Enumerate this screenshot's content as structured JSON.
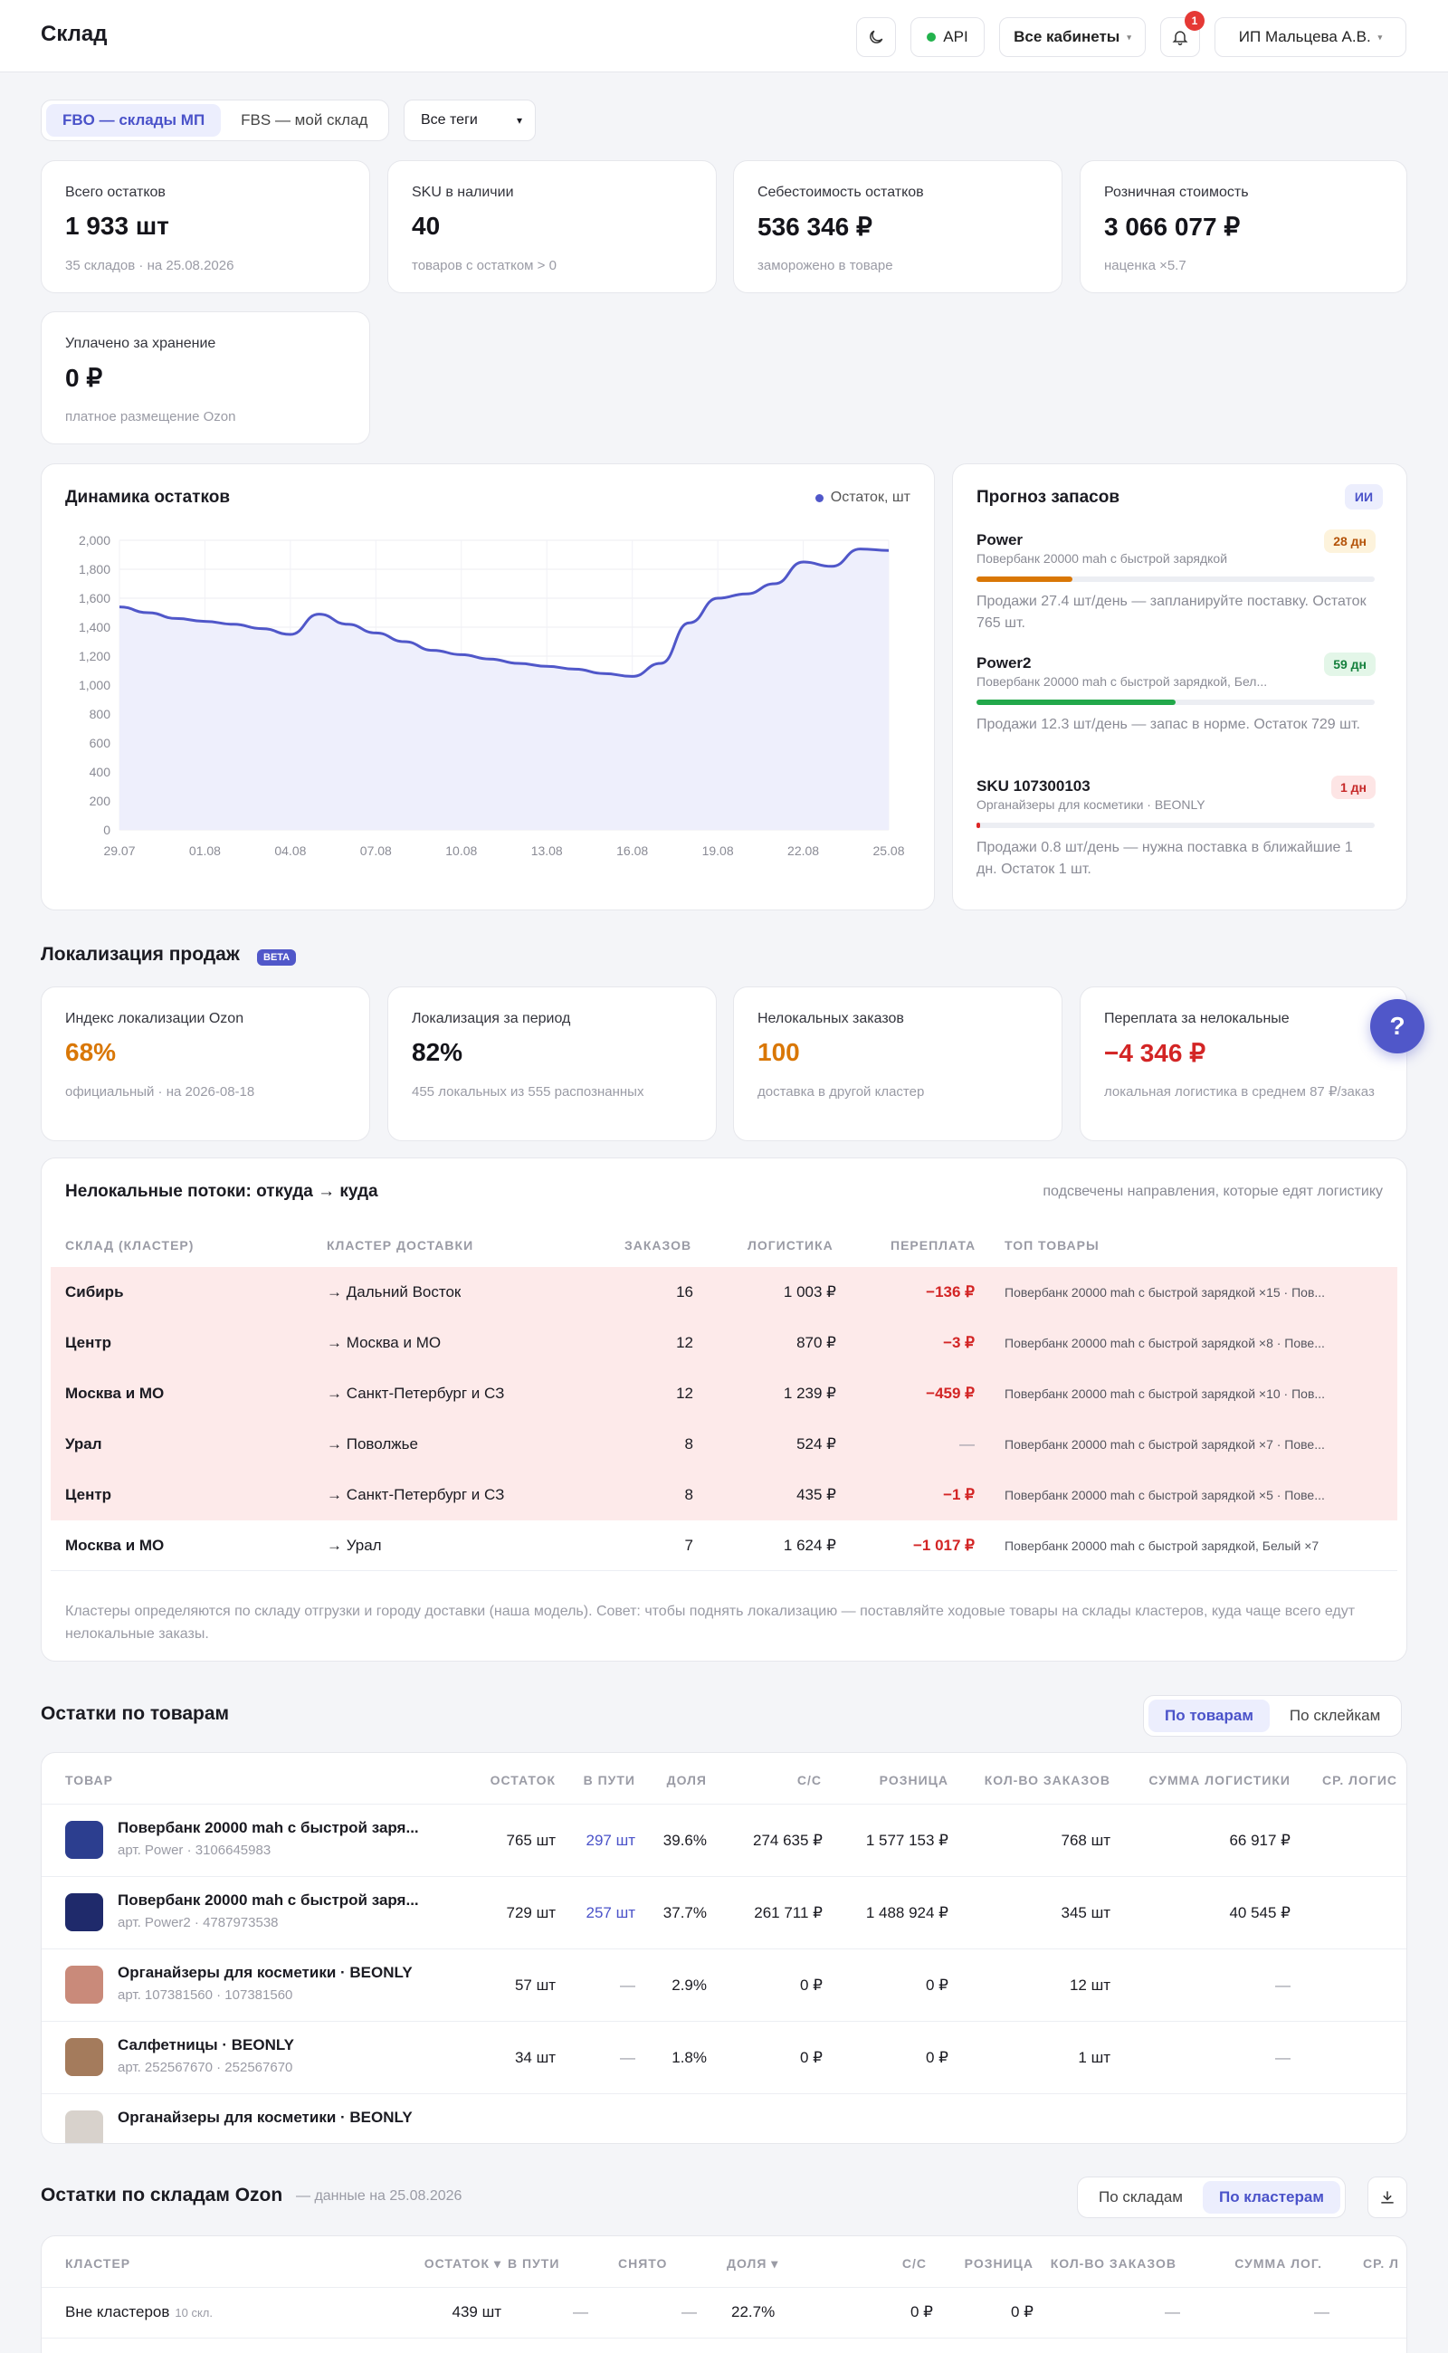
{
  "header": {
    "title": "Склад",
    "api_label": "API",
    "cabinets_label": "Все кабинеты",
    "notifications_count": "1",
    "user_label": "ИП Мальцева А.В."
  },
  "filters": {
    "fbo_label": "FBO — склады МП",
    "fbs_label": "FBS — мой склад",
    "tags_label": "Все теги"
  },
  "kpis": [
    {
      "label": "Всего остатков",
      "value": "1 933 шт",
      "sub": "35 складов · на 25.08.2026"
    },
    {
      "label": "SKU в наличии",
      "value": "40",
      "sub": "товаров с остатком > 0"
    },
    {
      "label": "Себестоимость остатков",
      "value": "536 346 ₽",
      "sub": "заморожено в товаре"
    },
    {
      "label": "Розничная стоимость",
      "value": "3 066 077 ₽",
      "sub": "наценка ×5.7"
    },
    {
      "label": "Уплачено за хранение",
      "value": "0 ₽",
      "sub": "платное размещение Ozon"
    }
  ],
  "chart_data": {
    "type": "area",
    "title": "Динамика остатков",
    "legend": "Остаток, шт",
    "legend_position": "top-right",
    "color": "#5057c9",
    "grid": true,
    "ylim": [
      0,
      2000
    ],
    "yticks": [
      "2,000",
      "1,800",
      "1,600",
      "1,400",
      "1,200",
      "1,000",
      "800",
      "600",
      "400",
      "200",
      "0"
    ],
    "xticks": [
      "29.07",
      "01.08",
      "04.08",
      "07.08",
      "10.08",
      "13.08",
      "16.08",
      "19.08",
      "22.08",
      "25.08"
    ],
    "x": [
      "29.07",
      "30.07",
      "31.07",
      "01.08",
      "02.08",
      "03.08",
      "04.08",
      "05.08",
      "06.08",
      "07.08",
      "08.08",
      "09.08",
      "10.08",
      "11.08",
      "12.08",
      "13.08",
      "14.08",
      "15.08",
      "16.08",
      "17.08",
      "18.08",
      "19.08",
      "20.08",
      "21.08",
      "22.08",
      "23.08",
      "24.08",
      "25.08"
    ],
    "values": [
      1540,
      1500,
      1460,
      1440,
      1420,
      1390,
      1350,
      1490,
      1420,
      1360,
      1300,
      1240,
      1210,
      1180,
      1150,
      1130,
      1110,
      1080,
      1060,
      1150,
      1430,
      1600,
      1630,
      1700,
      1850,
      1820,
      1940,
      1930
    ]
  },
  "forecast": {
    "title": "Прогноз запасов",
    "ai_label": "ИИ",
    "items": [
      {
        "name": "Power",
        "sub": "Повербанк 20000 mah с быстрой зарядкой",
        "days": "28 дн",
        "progress": 0.24,
        "color": "#d97706",
        "pill_bg": "#fdf3dc",
        "pill_fg": "#b45309",
        "text": "Продажи 27.4 шт/день — запланируйте поставку. Остаток 765 шт."
      },
      {
        "name": "Power2",
        "sub": "Повербанк 20000 mah с быстрой зарядкой, Бел...",
        "days": "59 дн",
        "progress": 0.5,
        "color": "#22a84a",
        "pill_bg": "#e3f6e8",
        "pill_fg": "#15803d",
        "text": "Продажи 12.3 шт/день — запас в норме. Остаток 729 шт."
      },
      {
        "name": "SKU 107300103",
        "sub": "Органайзеры для косметики · BEONLY",
        "days": "1 дн",
        "progress": 0.01,
        "color": "#dc2626",
        "pill_bg": "#fde5e5",
        "pill_fg": "#c62828",
        "text": "Продажи 0.8 шт/день — нужна поставка в ближайшие 1 дн. Остаток 1 шт."
      }
    ]
  },
  "localization": {
    "title": "Локализация продаж",
    "beta": "BETA",
    "kpis": [
      {
        "label": "Индекс локализации Ozon",
        "value": "68%",
        "sub": "официальный · на 2026-08-18",
        "color": "#d97706"
      },
      {
        "label": "Локализация за период",
        "value": "82%",
        "sub": "455 локальных из 555 распознанных",
        "color": "#14141a"
      },
      {
        "label": "Нелокальных заказов",
        "value": "100",
        "sub": "доставка в другой кластер",
        "color": "#d97706"
      },
      {
        "label": "Переплата за нелокальные",
        "value": "−4 346 ₽",
        "sub": "локальная логистика в среднем 87 ₽/заказ",
        "color": "#d32525"
      }
    ]
  },
  "flows": {
    "title": "Нелокальные потоки: откуда → куда",
    "hint": "подсвечены направления, которые едят логистику",
    "headers": [
      "СКЛАД (КЛАСТЕР)",
      "КЛАСТЕР ДОСТАВКИ",
      "ЗАКАЗОВ",
      "ЛОГИСТИКА",
      "ПЕРЕПЛАТА",
      "ТОП ТОВАРЫ"
    ],
    "rows": [
      {
        "from": "Сибирь",
        "to": "→ Дальний Восток",
        "orders": "16",
        "logistics": "1 003 ₽",
        "over": "−136 ₽",
        "top": "Повербанк 20000 mah с быстрой зарядкой ×15 · Пов...",
        "bad": true
      },
      {
        "from": "Центр",
        "to": "→ Москва и МО",
        "orders": "12",
        "logistics": "870 ₽",
        "over": "−3 ₽",
        "top": "Повербанк 20000 mah с быстрой зарядкой ×8 · Пове...",
        "bad": true
      },
      {
        "from": "Москва и МО",
        "to": "→ Санкт-Петербург и СЗ",
        "orders": "12",
        "logistics": "1 239 ₽",
        "over": "−459 ₽",
        "top": "Повербанк 20000 mah с быстрой зарядкой ×10 · Пов...",
        "bad": true
      },
      {
        "from": "Урал",
        "to": "→ Поволжье",
        "orders": "8",
        "logistics": "524 ₽",
        "over": "—",
        "top": "Повербанк 20000 mah с быстрой зарядкой ×7 · Пове...",
        "bad": true
      },
      {
        "from": "Центр",
        "to": "→ Санкт-Петербург и СЗ",
        "orders": "8",
        "logistics": "435 ₽",
        "over": "−1 ₽",
        "top": "Повербанк 20000 mah с быстрой зарядкой ×5 · Пове...",
        "bad": true
      },
      {
        "from": "Москва и МО",
        "to": "→ Урал",
        "orders": "7",
        "logistics": "1 624 ₽",
        "over": "−1 017 ₽",
        "top": "Повербанк 20000 mah с быстрой зарядкой, Белый ×7",
        "bad": false
      }
    ],
    "note": "Кластеры определяются по складу отгрузки и городу доставки (наша модель). Совет: чтобы поднять локализацию — поставляйте ходовые товары на склады кластеров, куда чаще всего едут нелокальные заказы."
  },
  "products": {
    "title": "Остатки по товарам",
    "toggle_products": "По товарам",
    "toggle_bundles": "По склейкам",
    "headers": [
      "ТОВАР",
      "ОСТАТОК",
      "В ПУТИ",
      "ДОЛЯ",
      "С/С",
      "РОЗНИЦА",
      "КОЛ-ВО ЗАКАЗОВ",
      "СУММА ЛОГИСТИКИ",
      "СР. ЛОГИС"
    ],
    "rows": [
      {
        "name": "Повербанк 20000 mah с быстрой заря...",
        "art": "арт. Power · 3106645983",
        "stock": "765 шт",
        "transit": "297 шт",
        "share": "39.6%",
        "cost": "274 635 ₽",
        "retail": "1 577 153 ₽",
        "orders": "768 шт",
        "logistics": "66 917 ₽"
      },
      {
        "name": "Повербанк 20000 mah с быстрой заря...",
        "art": "арт. Power2 · 4787973538",
        "stock": "729 шт",
        "transit": "257 шт",
        "share": "37.7%",
        "cost": "261 711 ₽",
        "retail": "1 488 924 ₽",
        "orders": "345 шт",
        "logistics": "40 545 ₽"
      },
      {
        "name": "Органайзеры для косметики · BEONLY",
        "art": "арт. 107381560 · 107381560",
        "stock": "57 шт",
        "transit": "—",
        "share": "2.9%",
        "cost": "0 ₽",
        "retail": "0 ₽",
        "orders": "12 шт",
        "logistics": "—"
      },
      {
        "name": "Салфетницы · BEONLY",
        "art": "арт. 252567670 · 252567670",
        "stock": "34 шт",
        "transit": "—",
        "share": "1.8%",
        "cost": "0 ₽",
        "retail": "0 ₽",
        "orders": "1 шт",
        "logistics": "—"
      },
      {
        "name": "Органайзеры для косметики · BEONLY",
        "art": "",
        "stock": "",
        "transit": "",
        "share": "",
        "cost": "",
        "retail": "",
        "orders": "",
        "logistics": ""
      }
    ]
  },
  "warehouses": {
    "title": "Остатки по складам Ozon",
    "date": "— данные на 25.08.2026",
    "toggle_warehouses": "По складам",
    "toggle_clusters": "По кластерам",
    "headers": [
      "КЛАСТЕР",
      "ОСТАТОК ▾",
      "В ПУТИ",
      "СНЯТО",
      "ДОЛЯ ▾",
      "С/С",
      "РОЗНИЦА",
      "КОЛ-ВО ЗАКАЗОВ",
      "СУММА ЛОГ.",
      "СР. Л"
    ],
    "rows": [
      {
        "name": "Вне кластеров",
        "count": "10 скл.",
        "stock": "439 шт",
        "transit": "—",
        "removed": "—",
        "share": "22.7%",
        "cost": "0 ₽",
        "retail": "0 ₽",
        "orders": "—",
        "logistics": "—"
      }
    ]
  },
  "help_label": "?"
}
